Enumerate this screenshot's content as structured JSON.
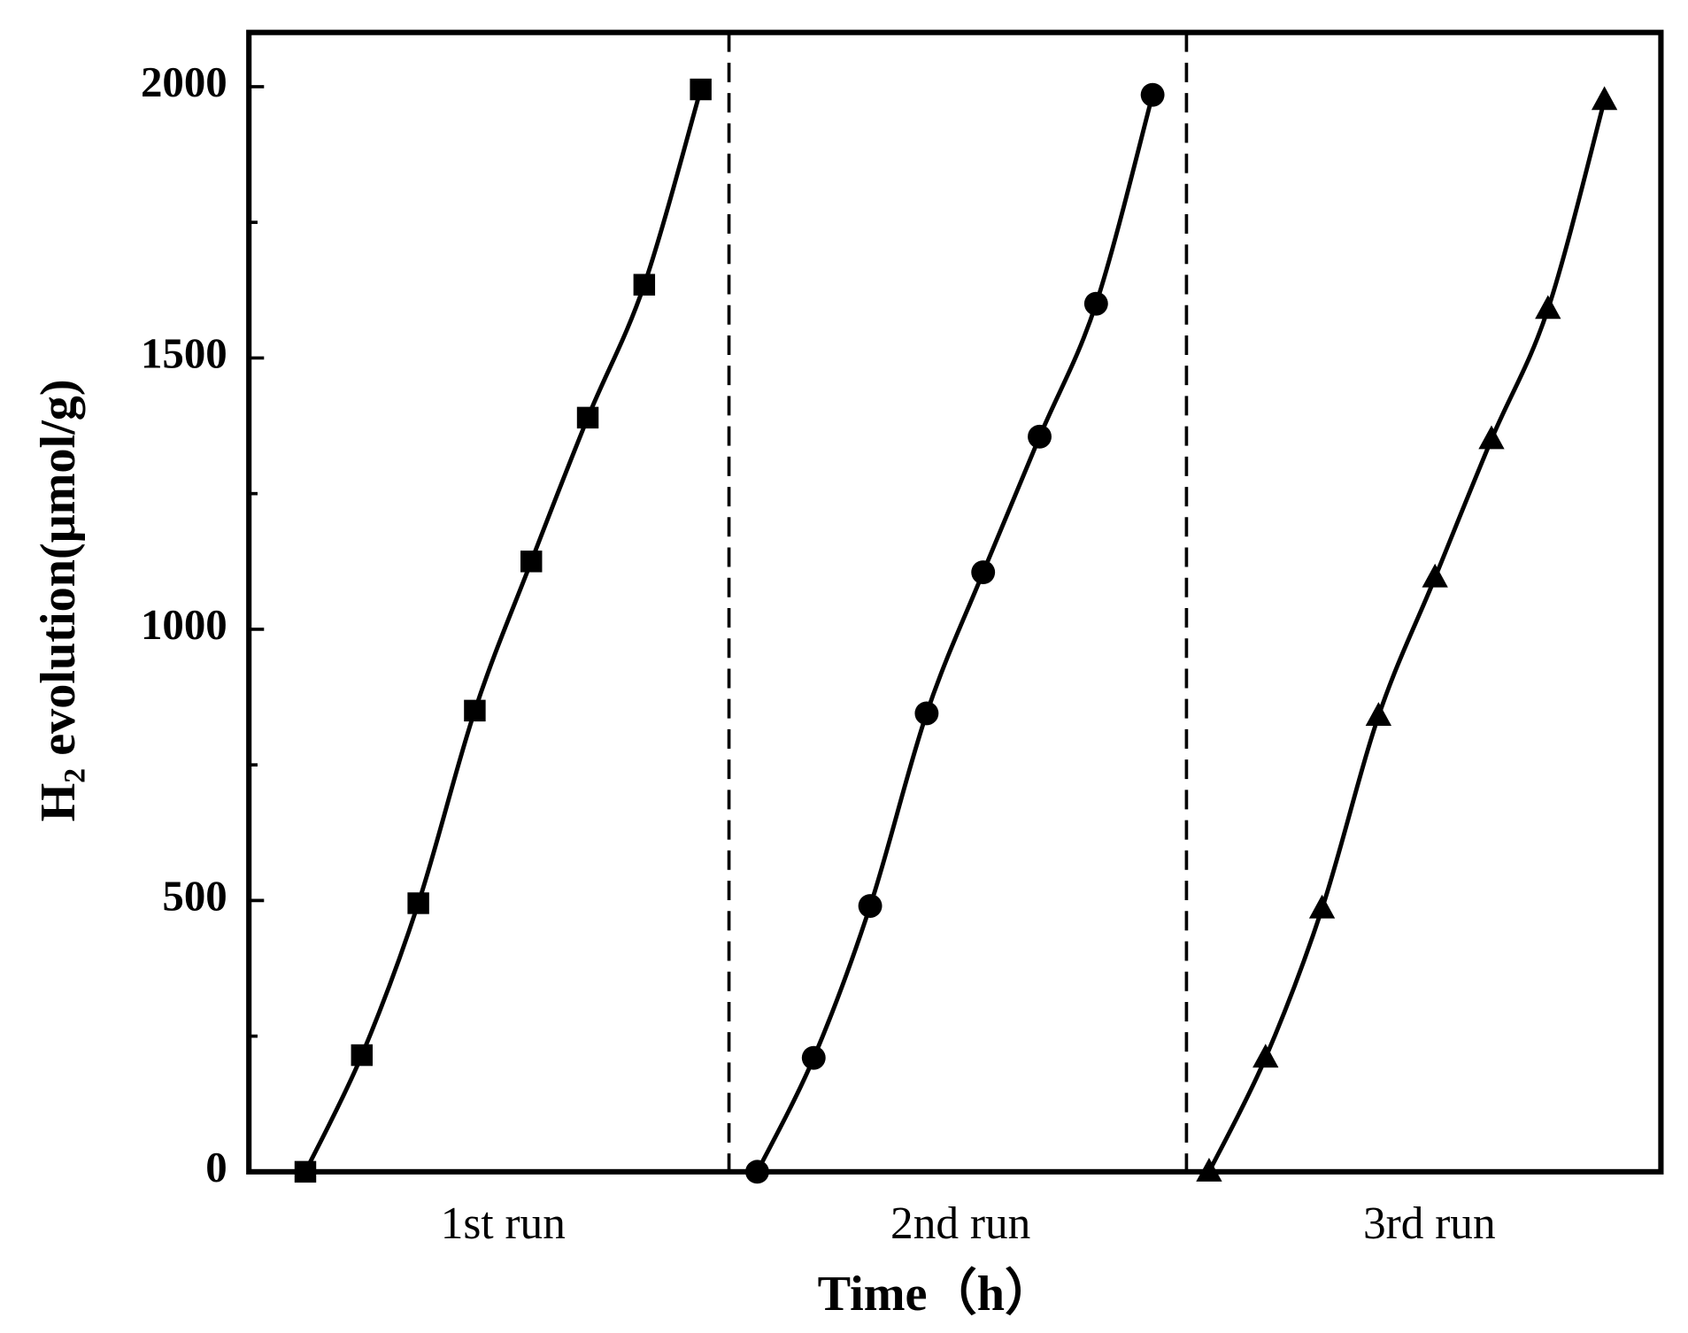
{
  "chart_data": {
    "type": "line",
    "xlabel": "Time（h）",
    "ylabel": "H₂ evolution(μmol/g)",
    "xlim": [
      -1,
      24
    ],
    "ylim": [
      0,
      2100
    ],
    "yticks": [
      0,
      500,
      1000,
      1500,
      2000
    ],
    "yminorticks": [
      250,
      750,
      1250,
      1750
    ],
    "xticks": [
      {
        "value": 3.5,
        "label": "1st run"
      },
      {
        "value": 11.6,
        "label": "2nd run"
      },
      {
        "value": 19.9,
        "label": "3rd run"
      }
    ],
    "separators": [
      7.5,
      15.6
    ],
    "series": [
      {
        "marker": "square",
        "color": "#000000",
        "x": [
          0,
          1,
          2,
          3,
          4,
          5,
          6,
          7
        ],
        "values": [
          0,
          215,
          495,
          850,
          1125,
          1390,
          1635,
          1995
        ]
      },
      {
        "marker": "circle",
        "color": "#000000",
        "x": [
          8,
          9,
          10,
          11,
          12,
          13,
          14,
          15
        ],
        "values": [
          0,
          210,
          490,
          845,
          1105,
          1355,
          1600,
          1985
        ]
      },
      {
        "marker": "triangle",
        "color": "#000000",
        "x": [
          16,
          17,
          18,
          19,
          20,
          21,
          22,
          23
        ],
        "values": [
          0,
          210,
          485,
          840,
          1095,
          1350,
          1590,
          1975
        ]
      }
    ]
  }
}
